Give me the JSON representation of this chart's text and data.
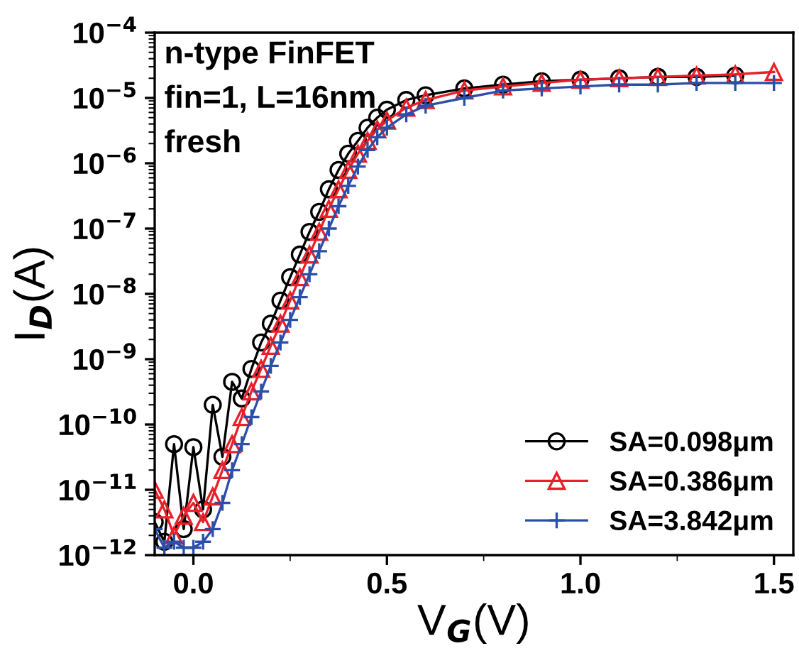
{
  "chart_data": {
    "type": "line",
    "xlabel": "V$_{G}$(V)",
    "ylabel": "I$_{D}$(A)",
    "log": "y",
    "xlim": [
      -0.1,
      1.55
    ],
    "xticks": [
      {
        "value": 0,
        "label": "0.0"
      },
      0.5,
      {
        "value": 1,
        "label": "1.0"
      },
      1.5
    ],
    "ylim": [
      1e-12,
      0.0001
    ],
    "yticks": [
      {
        "value": 1e-12,
        "label": "10$^{−12}$"
      },
      {
        "value": 1e-11,
        "label": "10$^{−11}$"
      },
      {
        "value": 1e-10,
        "label": "10$^{−10}$"
      },
      {
        "value": 1e-09,
        "label": "10$^{−9}$"
      },
      {
        "value": 1e-08,
        "label": "10$^{−8}$"
      },
      {
        "value": 1e-07,
        "label": "10$^{−7}$"
      },
      {
        "value": 1e-06,
        "label": "10$^{−6}$"
      },
      {
        "value": 1e-05,
        "label": "10$^{−5}$"
      },
      {
        "value": 0.0001,
        "label": "10$^{−4}$"
      }
    ],
    "x": [
      -0.1,
      -0.075,
      -0.05,
      -0.025,
      0,
      0.025,
      0.05,
      0.075,
      0.1,
      0.125,
      0.15,
      0.175,
      0.2,
      0.225,
      0.25,
      0.275,
      0.3,
      0.325,
      0.35,
      0.375,
      0.4,
      0.425,
      0.45,
      0.475,
      0.5,
      0.55,
      0.6,
      0.7,
      0.8,
      0.9,
      1.0,
      1.1,
      1.2,
      1.3,
      1.4,
      1.5
    ],
    "series": [
      {
        "name": "SA=0.098μm",
        "color": "#000000",
        "marker": "circle",
        "values": [
          3.2e-12,
          1.6e-12,
          5e-11,
          2.5e-12,
          4.5e-11,
          5e-12,
          2e-10,
          3.2e-11,
          4.5e-10,
          2.5e-10,
          7.1e-10,
          1.8e-09,
          3.5e-09,
          7.9e-09,
          1.8e-08,
          4e-08,
          8.9e-08,
          1.8e-07,
          4e-07,
          7.9e-07,
          1.4e-06,
          2.2e-06,
          3.5e-06,
          5e-06,
          6.6e-06,
          9.3e-06,
          1.1e-05,
          1.4e-05,
          1.6e-05,
          1.8e-05,
          1.9e-05,
          2e-05,
          2.1e-05,
          2.1e-05,
          2.2e-05,
          null
        ]
      },
      {
        "name": "SA=0.386μm",
        "color": "#e8202a",
        "marker": "triangle",
        "values": [
          1e-11,
          5e-12,
          2e-12,
          4e-12,
          6.3e-12,
          3.2e-12,
          7.9e-12,
          2e-11,
          5e-11,
          1.3e-10,
          3.2e-10,
          7.1e-10,
          1.6e-09,
          3.5e-09,
          7.9e-09,
          1.8e-08,
          4e-08,
          8.9e-08,
          2e-07,
          4e-07,
          7.9e-07,
          1.4e-06,
          2.2e-06,
          3.3e-06,
          4.5e-06,
          7.1e-06,
          9.3e-06,
          1.3e-05,
          1.5e-05,
          1.7e-05,
          1.9e-05,
          2e-05,
          2.1e-05,
          2.2e-05,
          2.3e-05,
          2.5e-05
        ]
      },
      {
        "name": "SA=3.842μm",
        "color": "#2b4fa8",
        "marker": "cross",
        "values": [
          2.5e-12,
          1.3e-12,
          1.6e-12,
          1.3e-12,
          1.3e-12,
          1.6e-12,
          2.5e-12,
          6.3e-12,
          2e-11,
          5e-11,
          1.3e-10,
          3.2e-10,
          7.9e-10,
          1.8e-09,
          4e-09,
          8.9e-09,
          2e-08,
          4.5e-08,
          1e-07,
          2.2e-07,
          4.5e-07,
          8.9e-07,
          1.6e-06,
          2.5e-06,
          3.5e-06,
          5.6e-06,
          7.6e-06,
          1e-05,
          1.3e-05,
          1.4e-05,
          1.5e-05,
          1.6e-05,
          1.6e-05,
          1.7e-05,
          1.7e-05,
          1.7e-05
        ]
      }
    ],
    "annotations": [
      "n-type FinFET",
      "fin=1, L=16nm",
      "fresh"
    ],
    "legend": "bottom right",
    "grid": false
  }
}
